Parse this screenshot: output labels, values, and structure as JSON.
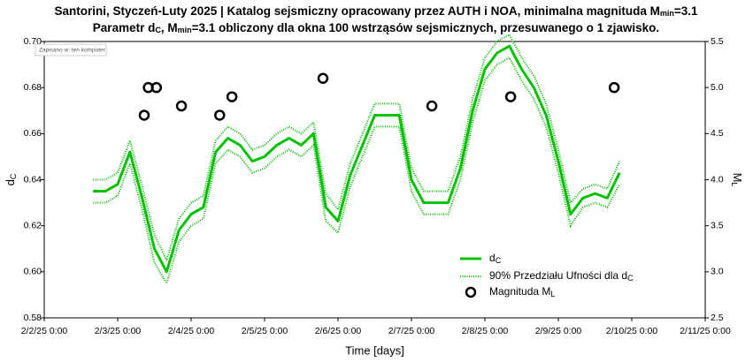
{
  "chart_data": {
    "type": "line",
    "title": [
      "Santorini, Styczeń-Luty 2025 | Katalog sejsmiczny opracowany przez AUTH i NOA, minimalna magnituda M",
      "min",
      "=3.1"
    ],
    "subtitle": [
      "Parametr d",
      "C",
      ", M",
      "min",
      "=3.1 obliczony dla okna 100 wstrząsów sejsmicznych, przesuwanego o 1 zjawisko."
    ],
    "tooltip": "Zapisano w: ten komputer",
    "x_label": "Time [days]",
    "y_label": [
      "d",
      "C"
    ],
    "y2_label": [
      "M",
      "L"
    ],
    "xlim": [
      "2025-02-02T00:00",
      "2025-02-11T00:00"
    ],
    "xticks": [
      {
        "value": "2025-02-02T00:00",
        "label": "2/2/25 0:00"
      },
      {
        "value": "2025-02-03T00:00",
        "label": "2/3/25 0:00"
      },
      {
        "value": "2025-02-04T00:00",
        "label": "2/4/25 0:00"
      },
      {
        "value": "2025-02-05T00:00",
        "label": "2/5/25 0:00"
      },
      {
        "value": "2025-02-06T00:00",
        "label": "2/6/25 0:00"
      },
      {
        "value": "2025-02-07T00:00",
        "label": "2/7/25 0:00"
      },
      {
        "value": "2025-02-08T00:00",
        "label": "2/8/25 0:00"
      },
      {
        "value": "2025-02-09T00:00",
        "label": "2/9/25 0:00"
      },
      {
        "value": "2025-02-10T00:00",
        "label": "2/10/25 0:00"
      },
      {
        "value": "2025-02-11T00:00",
        "label": "2/11/25 0:00"
      }
    ],
    "ylim": [
      0.58,
      0.7
    ],
    "yticks": [
      {
        "value": 0.58,
        "label": "0.58"
      },
      {
        "value": 0.6,
        "label": "0.60"
      },
      {
        "value": 0.62,
        "label": "0.62"
      },
      {
        "value": 0.64,
        "label": "0.64"
      },
      {
        "value": 0.66,
        "label": "0.66"
      },
      {
        "value": 0.68,
        "label": "0.68"
      },
      {
        "value": 0.7,
        "label": "0.70"
      }
    ],
    "y2lim": [
      2.5,
      5.5
    ],
    "y2ticks": [
      2.5,
      {
        "value": 3.0,
        "label": "3.0"
      },
      3.5,
      {
        "value": 4.0,
        "label": "4.0"
      },
      4.5,
      {
        "value": 5.0,
        "label": "5.0"
      },
      5.5
    ],
    "x": [
      "2025-02-02T16:00",
      "2025-02-02T20:00",
      "2025-02-03T00:00",
      "2025-02-03T04:00",
      "2025-02-03T08:00",
      "2025-02-03T12:00",
      "2025-02-03T16:00",
      "2025-02-03T20:00",
      "2025-02-04T00:00",
      "2025-02-04T04:00",
      "2025-02-04T08:00",
      "2025-02-04T12:00",
      "2025-02-04T16:00",
      "2025-02-04T20:00",
      "2025-02-05T00:00",
      "2025-02-05T04:00",
      "2025-02-05T08:00",
      "2025-02-05T12:00",
      "2025-02-05T16:00",
      "2025-02-05T20:00",
      "2025-02-06T00:00",
      "2025-02-06T04:00",
      "2025-02-06T08:00",
      "2025-02-06T12:00",
      "2025-02-06T16:00",
      "2025-02-06T20:00",
      "2025-02-07T00:00",
      "2025-02-07T04:00",
      "2025-02-07T08:00",
      "2025-02-07T12:00",
      "2025-02-07T16:00",
      "2025-02-07T20:00",
      "2025-02-08T00:00",
      "2025-02-08T04:00",
      "2025-02-08T08:00",
      "2025-02-08T12:00",
      "2025-02-08T16:00",
      "2025-02-08T20:00",
      "2025-02-09T00:00",
      "2025-02-09T04:00",
      "2025-02-09T08:00",
      "2025-02-09T12:00",
      "2025-02-09T16:00",
      "2025-02-09T20:00"
    ],
    "series": [
      {
        "name": [
          "d",
          "C"
        ],
        "color": "#00c000",
        "values": [
          0.635,
          0.635,
          0.638,
          0.652,
          0.632,
          0.61,
          0.6,
          0.618,
          0.625,
          0.628,
          0.652,
          0.658,
          0.655,
          0.648,
          0.65,
          0.655,
          0.658,
          0.655,
          0.66,
          0.628,
          0.622,
          0.642,
          0.655,
          0.668,
          0.668,
          0.668,
          0.64,
          0.63,
          0.63,
          0.63,
          0.645,
          0.67,
          0.688,
          0.695,
          0.698,
          0.688,
          0.68,
          0.668,
          0.648,
          0.625,
          0.632,
          0.634,
          0.632,
          0.643
        ]
      },
      {
        "name": [
          "90% Przedziału Ufności dla d",
          "C"
        ],
        "color": "#00c000",
        "lower": [
          0.63,
          0.63,
          0.633,
          0.647,
          0.627,
          0.604,
          0.595,
          0.613,
          0.62,
          0.623,
          0.647,
          0.653,
          0.65,
          0.643,
          0.645,
          0.65,
          0.653,
          0.65,
          0.655,
          0.622,
          0.617,
          0.637,
          0.65,
          0.663,
          0.663,
          0.663,
          0.635,
          0.625,
          0.625,
          0.625,
          0.64,
          0.665,
          0.683,
          0.69,
          0.693,
          0.683,
          0.675,
          0.663,
          0.643,
          0.62,
          0.628,
          0.63,
          0.628,
          0.638
        ],
        "upper": [
          0.64,
          0.64,
          0.643,
          0.657,
          0.637,
          0.616,
          0.605,
          0.623,
          0.63,
          0.633,
          0.657,
          0.663,
          0.66,
          0.653,
          0.655,
          0.66,
          0.663,
          0.66,
          0.665,
          0.634,
          0.627,
          0.647,
          0.66,
          0.673,
          0.673,
          0.673,
          0.645,
          0.635,
          0.635,
          0.635,
          0.65,
          0.675,
          0.693,
          0.7,
          0.703,
          0.693,
          0.685,
          0.673,
          0.653,
          0.63,
          0.636,
          0.638,
          0.636,
          0.648
        ]
      }
    ],
    "magnitudes": {
      "name": [
        "Magnituda M",
        "L"
      ],
      "color": "#000000",
      "axis": "y2",
      "x": [
        "2025-02-03T08:40",
        "2025-02-03T10:00",
        "2025-02-03T12:40",
        "2025-02-03T20:50",
        "2025-02-04T09:20",
        "2025-02-04T13:20",
        "2025-02-05T19:05",
        "2025-02-07T06:40",
        "2025-02-08T08:25",
        "2025-02-09T18:15"
      ],
      "values": [
        4.7,
        5.0,
        5.0,
        4.8,
        4.7,
        4.9,
        5.1,
        4.8,
        4.9,
        5.0
      ]
    },
    "legend": "lower right"
  }
}
